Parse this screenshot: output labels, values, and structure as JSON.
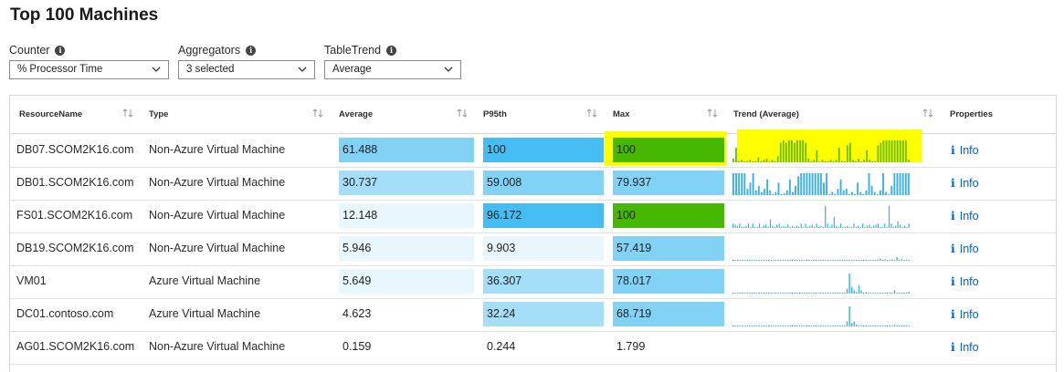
{
  "title": "Top 100 Machines",
  "params": [
    {
      "label": "Counter",
      "value": "% Processor Time"
    },
    {
      "label": "Aggregators",
      "value": "3 selected"
    },
    {
      "label": "TableTrend",
      "value": "Average"
    }
  ],
  "columns": [
    "ResourceName",
    "Type",
    "Average",
    "P95th",
    "Max",
    "Trend (Average)",
    "Properties"
  ],
  "info_label": "Info",
  "colors": {
    "bar_strong": "#46bdf2",
    "bar_mid": "#82d2f6",
    "bar_light": "#a5def8",
    "bar_faint": "#e8f6fd",
    "bar_max_green": "#47b800",
    "spark_blue": "#3ab0e6",
    "spark_green": "#6bbf00",
    "highlight": "#ffff00",
    "link": "#0064c8"
  },
  "rows": [
    {
      "name": "DB07.SCOM2K16.com",
      "type": "Non-Azure Virtual Machine",
      "average": "61.488",
      "p95": "100",
      "max": "100",
      "highlight": true,
      "trend": [
        3,
        12,
        1,
        2,
        0,
        1,
        2,
        0,
        1,
        4,
        1,
        2,
        3,
        0,
        2,
        1,
        5,
        16,
        18,
        16,
        18,
        18,
        16,
        18,
        18,
        18,
        16,
        3,
        1,
        2,
        10,
        0,
        2,
        0,
        1,
        2,
        0,
        2,
        12,
        1,
        0,
        14,
        16,
        2,
        1,
        3,
        0,
        2,
        10,
        2,
        0,
        1,
        14,
        16,
        18,
        18,
        18,
        18,
        18,
        18,
        18,
        18,
        18,
        2
      ]
    },
    {
      "name": "DB01.SCOM2K16.com",
      "type": "Non-Azure Virtual Machine",
      "average": "30.737",
      "p95": "59.008",
      "max": "79.937",
      "highlight": false,
      "trend": [
        14,
        14,
        14,
        14,
        14,
        4,
        8,
        14,
        3,
        6,
        2,
        4,
        10,
        3,
        0,
        2,
        8,
        0,
        1,
        3,
        10,
        2,
        6,
        12,
        14,
        14,
        14,
        14,
        14,
        14,
        14,
        14,
        8,
        14,
        0,
        2,
        0,
        4,
        10,
        3,
        4,
        0,
        2,
        0,
        8,
        2,
        0,
        3,
        14,
        6,
        2,
        0,
        3,
        14,
        2,
        0,
        6,
        14,
        14,
        14,
        14,
        14,
        14
      ]
    },
    {
      "name": "FS01.SCOM2K16.com",
      "type": "Non-Azure Virtual Machine",
      "average": "12.148",
      "p95": "96.172",
      "max": "100",
      "highlight": false,
      "trend": [
        4,
        3,
        2,
        4,
        1,
        0,
        2,
        4,
        1,
        4,
        0,
        1,
        4,
        0,
        2,
        3,
        1,
        8,
        2,
        0,
        3,
        4,
        1,
        2,
        1,
        3,
        0,
        2,
        1,
        2,
        0,
        4,
        1,
        4,
        0,
        2,
        3,
        1,
        4,
        1,
        2,
        1,
        20,
        4,
        1,
        3,
        10,
        2,
        1,
        4,
        0,
        1,
        2,
        1,
        0,
        4,
        1,
        2,
        0,
        4,
        1,
        2,
        3,
        0,
        2,
        3,
        4,
        1,
        1,
        4,
        1,
        20,
        4,
        1,
        2,
        6,
        3,
        1,
        2,
        0,
        4
      ]
    },
    {
      "name": "DB19.SCOM2K16.com",
      "type": "Non-Azure Virtual Machine",
      "average": "5.946",
      "p95": "9.903",
      "max": "57.419",
      "highlight": false,
      "trend": [
        0,
        0,
        0,
        0,
        0,
        0,
        0,
        0,
        0,
        0,
        0,
        0,
        0,
        0,
        0,
        0,
        0,
        0,
        0,
        0,
        0,
        0,
        0,
        0,
        0,
        0,
        0,
        0,
        0,
        0,
        0,
        0,
        0,
        0,
        0,
        0,
        0,
        0,
        0,
        0,
        0,
        0,
        0,
        0,
        0,
        0,
        0,
        0,
        0,
        0,
        0,
        0,
        0,
        0,
        0,
        0,
        0,
        0,
        0,
        1,
        0,
        1,
        3,
        1,
        2,
        0,
        1,
        2,
        0,
        5,
        1,
        2,
        0,
        1,
        0
      ]
    },
    {
      "name": "VM01",
      "type": "Azure Virtual Machine",
      "average": "5.649",
      "p95": "36.307",
      "max": "78.017",
      "highlight": false,
      "trend": [
        0,
        0,
        0,
        0,
        0,
        0,
        0,
        0,
        0,
        0,
        0,
        0,
        0,
        0,
        0,
        0,
        0,
        0,
        0,
        0,
        0,
        0,
        0,
        0,
        0,
        0,
        0,
        0,
        0,
        0,
        0,
        0,
        0,
        0,
        0,
        0,
        0,
        0,
        0,
        0,
        0,
        0,
        0,
        0,
        0,
        0,
        0,
        0,
        3,
        12,
        4,
        2,
        1,
        5,
        2,
        0,
        1,
        0,
        0,
        0,
        0,
        0,
        0,
        0,
        0,
        0,
        0,
        0,
        2,
        0,
        0,
        0,
        0,
        0,
        1
      ]
    },
    {
      "name": "DC01.contoso.com",
      "type": "Azure Virtual Machine",
      "average": "4.623",
      "p95": "32.24",
      "max": "68.719",
      "highlight": false,
      "trend": [
        0,
        0,
        0,
        0,
        0,
        0,
        0,
        0,
        0,
        0,
        0,
        0,
        0,
        0,
        0,
        0,
        0,
        0,
        0,
        0,
        0,
        0,
        0,
        0,
        0,
        0,
        0,
        0,
        0,
        0,
        0,
        0,
        0,
        0,
        0,
        0,
        0,
        0,
        0,
        0,
        0,
        0,
        0,
        0,
        0,
        0,
        0,
        0,
        3,
        12,
        2,
        3,
        1,
        0,
        0,
        0,
        0,
        0,
        0,
        0,
        0,
        0,
        0,
        0,
        0,
        0,
        0,
        0,
        1,
        0,
        0,
        0,
        0,
        0,
        0
      ]
    },
    {
      "name": "AG01.SCOM2K16.com",
      "type": "Non-Azure Virtual Machine",
      "average": "0.159",
      "p95": "0.244",
      "max": "1.799",
      "highlight": false,
      "trend": []
    }
  ]
}
